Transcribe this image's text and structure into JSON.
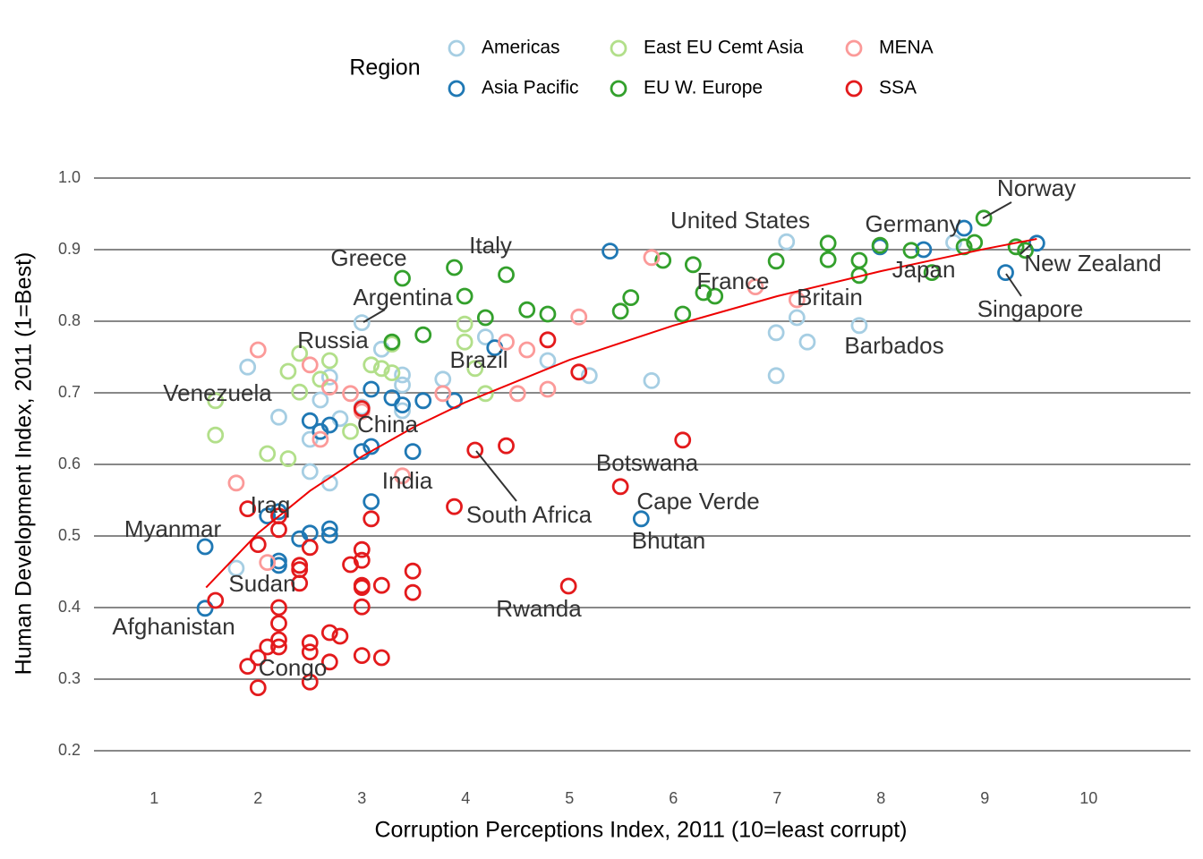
{
  "chart_data": {
    "type": "scatter",
    "x_label": "Corruption Perceptions Index, 2011 (10=least corrupt)",
    "y_label": "Human Development Index, 2011 (1=Best)",
    "legend_title": "Region",
    "xlim": [
      0.42,
      10.98
    ],
    "ylim": [
      0.16,
      1.03
    ],
    "xticks": [
      1,
      2,
      3,
      4,
      5,
      6,
      7,
      8,
      9,
      10
    ],
    "yticks": [
      0.2,
      0.3,
      0.4,
      0.5,
      0.6,
      0.7,
      0.8,
      0.9,
      {
        "value": 1,
        "label": "1.0"
      }
    ],
    "grid": true,
    "series": [
      {
        "name": "Americas",
        "color": "#a6cee3",
        "x": [
          1.9,
          2.2,
          1.79,
          2.6,
          2.5,
          2.5,
          2.69,
          2.69,
          3.0,
          3.19,
          3.0,
          3.39,
          3.39,
          3.39,
          3.78,
          4.19,
          4.79,
          5.19,
          5.79,
          6.99,
          6.99,
          7.09,
          7.19,
          7.29,
          7.79,
          8.7,
          2.79
        ],
        "y": [
          0.736,
          0.666,
          0.455,
          0.69,
          0.635,
          0.59,
          0.574,
          0.722,
          0.798,
          0.761,
          0.68,
          0.725,
          0.711,
          0.675,
          0.719,
          0.778,
          0.745,
          0.724,
          0.717,
          0.784,
          0.724,
          0.911,
          0.805,
          0.771,
          0.794,
          0.91,
          0.664
        ]
      },
      {
        "name": "Asia Pacific",
        "color": "#1f78b4",
        "x": [
          1.49,
          1.49,
          2.09,
          2.2,
          2.2,
          2.2,
          2.4,
          2.5,
          2.5,
          2.6,
          2.69,
          2.69,
          2.69,
          3.0,
          3.09,
          3.09,
          3.09,
          3.29,
          3.39,
          3.49,
          3.59,
          3.89,
          4.28,
          5.39,
          5.69,
          7.99,
          8.41,
          8.8,
          9.2,
          9.5
        ],
        "y": [
          0.485,
          0.399,
          0.528,
          0.534,
          0.465,
          0.459,
          0.496,
          0.504,
          0.661,
          0.646,
          0.655,
          0.51,
          0.501,
          0.618,
          0.625,
          0.705,
          0.548,
          0.693,
          0.683,
          0.618,
          0.689,
          0.689,
          0.763,
          0.898,
          0.524,
          0.904,
          0.9,
          0.93,
          0.868,
          0.909
        ]
      },
      {
        "name": "East EU Cemt Asia",
        "color": "#b2df8a",
        "x": [
          1.59,
          1.59,
          2.09,
          2.29,
          2.29,
          2.4,
          2.4,
          2.6,
          2.69,
          2.89,
          3.09,
          3.19,
          3.29,
          3.29,
          3.99,
          3.99,
          4.09,
          4.19
        ],
        "y": [
          0.689,
          0.641,
          0.615,
          0.608,
          0.73,
          0.755,
          0.701,
          0.719,
          0.745,
          0.646,
          0.739,
          0.734,
          0.728,
          0.768,
          0.796,
          0.771,
          0.734,
          0.699
        ]
      },
      {
        "name": "EU W. Europe",
        "color": "#33a02c",
        "x": [
          3.29,
          3.39,
          3.59,
          3.89,
          3.99,
          4.19,
          4.39,
          4.59,
          4.79,
          5.49,
          5.59,
          5.9,
          6.09,
          6.19,
          6.29,
          6.4,
          6.99,
          7.49,
          7.49,
          7.79,
          7.79,
          7.99,
          8.29,
          8.49,
          8.8,
          8.9,
          8.99,
          9.3,
          9.39
        ],
        "y": [
          0.771,
          0.86,
          0.781,
          0.875,
          0.835,
          0.805,
          0.865,
          0.816,
          0.81,
          0.814,
          0.833,
          0.885,
          0.81,
          0.879,
          0.84,
          0.835,
          0.884,
          0.909,
          0.886,
          0.885,
          0.864,
          0.906,
          0.899,
          0.868,
          0.904,
          0.91,
          0.944,
          0.904,
          0.899
        ]
      },
      {
        "name": "MENA",
        "color": "#fb9a99",
        "x": [
          1.79,
          2.0,
          2.09,
          2.5,
          2.6,
          2.69,
          2.89,
          3.0,
          3.39,
          3.78,
          4.39,
          4.5,
          4.59,
          4.79,
          5.09,
          5.79,
          6.79,
          7.19
        ],
        "y": [
          0.574,
          0.76,
          0.463,
          0.739,
          0.635,
          0.708,
          0.699,
          0.674,
          0.584,
          0.699,
          0.771,
          0.699,
          0.76,
          0.705,
          0.806,
          0.889,
          0.848,
          0.83
        ]
      },
      {
        "name": "SSA",
        "color": "#e31a1c",
        "x": [
          1.59,
          1.9,
          1.9,
          2.0,
          2.0,
          2.0,
          2.09,
          2.2,
          2.2,
          2.2,
          2.2,
          2.2,
          2.2,
          2.4,
          2.4,
          2.4,
          2.5,
          2.5,
          2.5,
          2.5,
          2.69,
          2.69,
          2.79,
          2.89,
          3.0,
          3.0,
          3.0,
          3.0,
          3.0,
          3.0,
          3.0,
          3.09,
          3.19,
          3.19,
          3.49,
          3.49,
          3.89,
          4.09,
          4.39,
          4.79,
          4.99,
          5.09,
          5.49,
          6.09
        ],
        "y": [
          0.41,
          0.538,
          0.318,
          0.488,
          0.33,
          0.288,
          0.345,
          0.528,
          0.509,
          0.4,
          0.378,
          0.355,
          0.345,
          0.459,
          0.453,
          0.434,
          0.484,
          0.351,
          0.338,
          0.296,
          0.365,
          0.324,
          0.36,
          0.46,
          0.678,
          0.481,
          0.466,
          0.431,
          0.428,
          0.401,
          0.333,
          0.524,
          0.431,
          0.33,
          0.451,
          0.421,
          0.541,
          0.62,
          0.626,
          0.774,
          0.43,
          0.729,
          0.569,
          0.634
        ]
      }
    ],
    "fit_line": {
      "color": "#ee0000",
      "x": [
        1.5,
        2,
        2.5,
        3,
        3.5,
        4,
        5,
        6,
        7,
        8,
        9,
        9.5
      ],
      "y": [
        0.428,
        0.504,
        0.563,
        0.611,
        0.652,
        0.687,
        0.746,
        0.794,
        0.835,
        0.87,
        0.901,
        0.915
      ]
    },
    "annotations": [
      "Norway",
      "United States",
      "Germany",
      "Italy",
      "Greece",
      "New Zealand",
      "Japan",
      "France",
      "Argentina",
      "Britain",
      "Singapore",
      "Russia",
      "Barbados",
      "Brazil",
      "Venezuela",
      "China",
      "Botswana",
      "India",
      "Cape Verde",
      "Iraq",
      "South Africa",
      "Myanmar",
      "Bhutan",
      "Sudan",
      "Rwanda",
      "Afghanistan",
      "Congo"
    ]
  }
}
